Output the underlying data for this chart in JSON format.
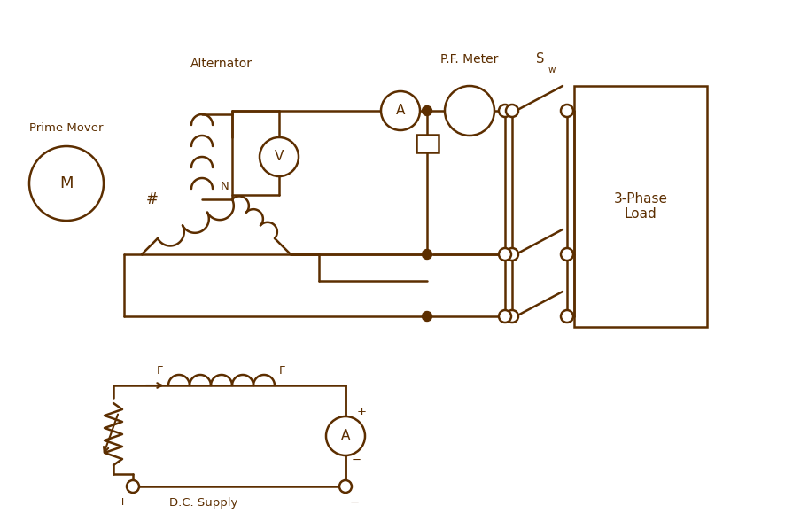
{
  "color": "#5C2E00",
  "bg": "#FFFFFF",
  "lw": 1.8,
  "figsize": [
    8.87,
    5.97
  ],
  "dpi": 100,
  "xlim": [
    0,
    8.87
  ],
  "ylim": [
    0,
    5.97
  ]
}
